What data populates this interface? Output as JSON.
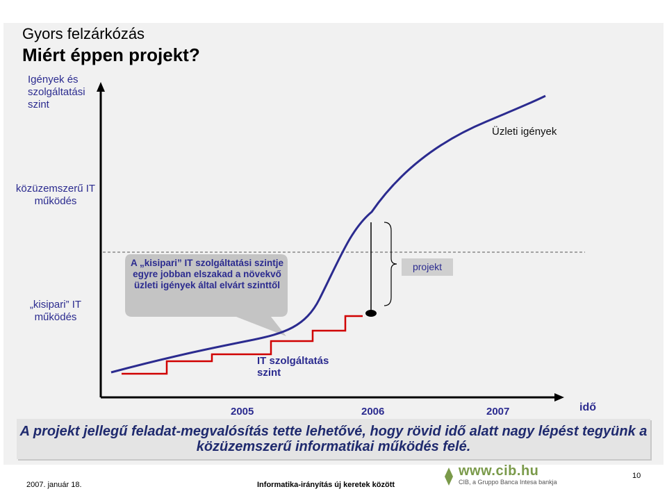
{
  "title": {
    "line1": "Gyors felzárkózás",
    "line2": "Miért éppen projekt?"
  },
  "y_axis_label": "Igények és szolgáltatási szint",
  "levels": {
    "kozuzemszeru": "közüzemszerű IT működés",
    "kisipari": "„kisipari” IT működés"
  },
  "curve_label": "Üzleti igények",
  "bubble": "A „kisipari” IT szolgáltatási szintje egyre jobban elszakad a növekvő üzleti igények által elvárt szinttől",
  "projekt_label": "projekt",
  "it_service_label": "IT szolgáltatás szint",
  "years": [
    "2005",
    "2006",
    "2007"
  ],
  "x_axis_label": "idő",
  "banner": "A projekt jellegű feladat-megvalósítás tette lehetővé, hogy rövid idő alatt nagy lépést tegyünk a közüzemszerű informatikai működés felé.",
  "footer": {
    "date": "2007. január 18.",
    "center": "Informatika-irányítás új keretek között",
    "page": "10",
    "logo_url": "www.cib.hu",
    "logo_sub": "CIB, a Gruppo Banca Intesa bankja"
  },
  "colors": {
    "curve": "#2b2b8f",
    "steps": "#d00000",
    "text_blue": "#2b2b8f",
    "logo_green": "#7a9a4a"
  }
}
